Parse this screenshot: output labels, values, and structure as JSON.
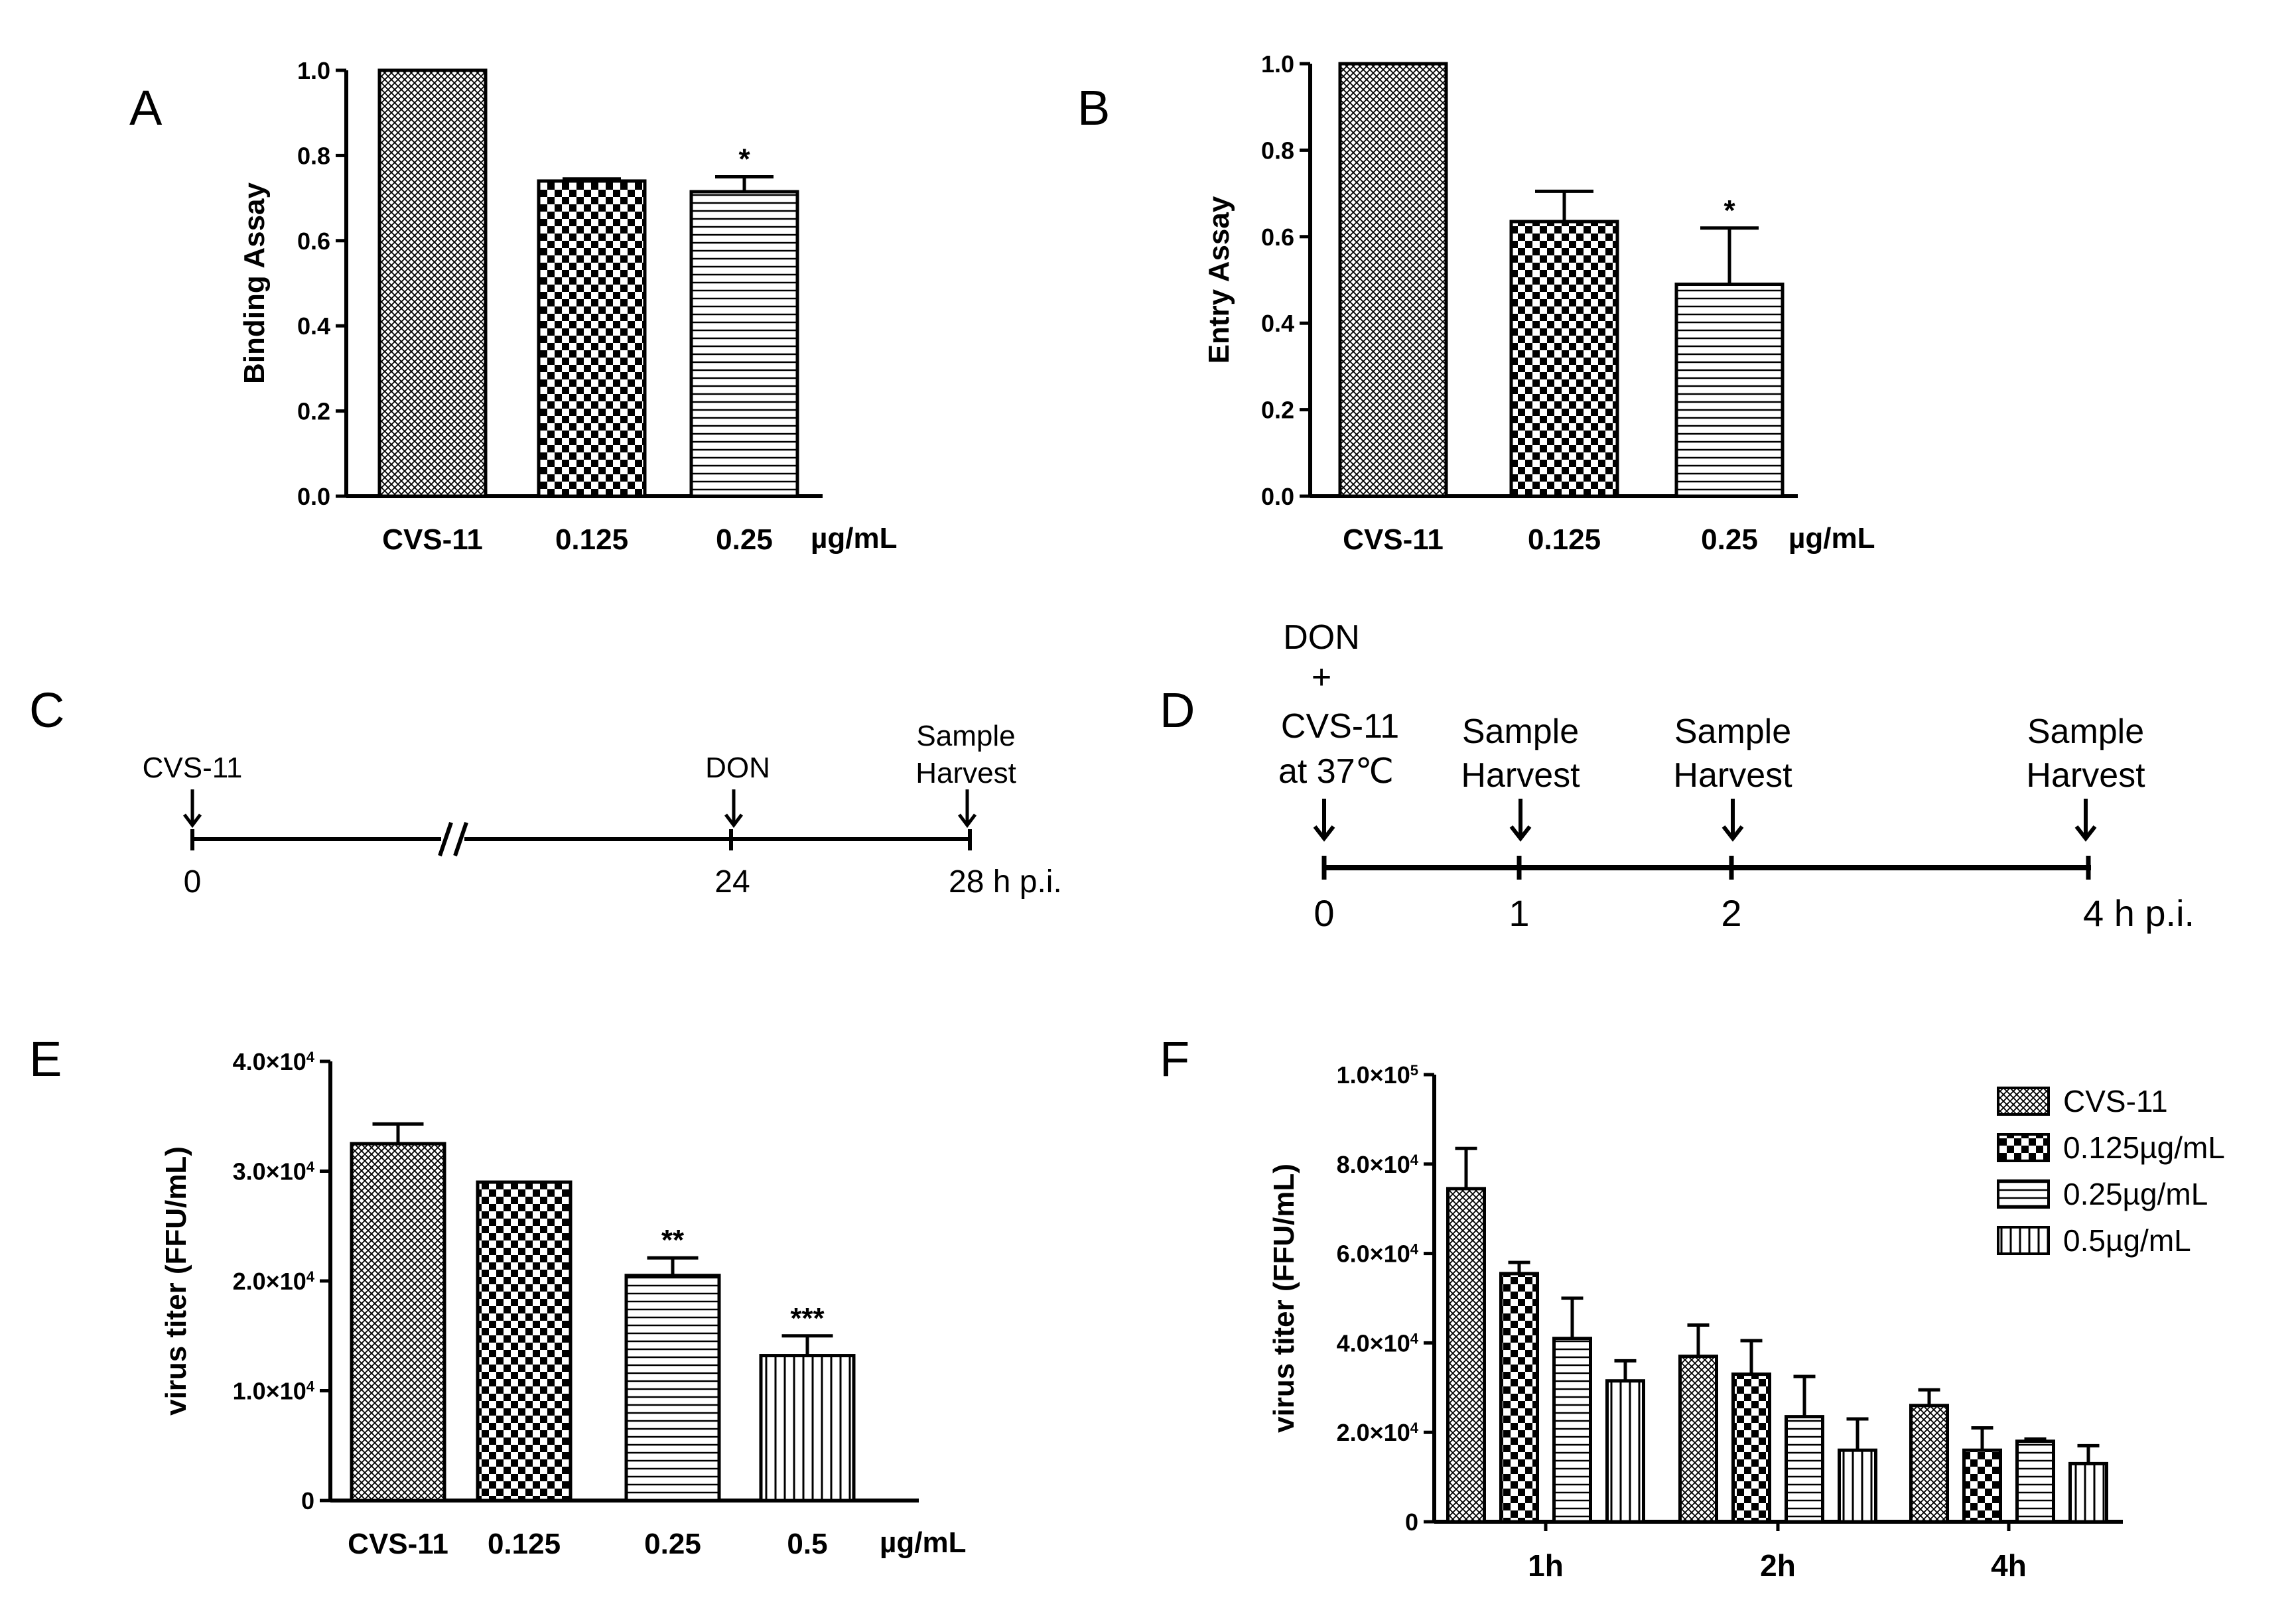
{
  "panels": {
    "A": {
      "label": "A"
    },
    "B": {
      "label": "B"
    },
    "C": {
      "label": "C"
    },
    "D": {
      "label": "D"
    },
    "E": {
      "label": "E"
    },
    "F": {
      "label": "F"
    }
  },
  "chart_data": [
    {
      "id": "A",
      "type": "bar",
      "ylabel": "Binding Assay",
      "categories": [
        "CVS-11",
        "0.125",
        "0.25"
      ],
      "values": [
        1.0,
        0.74,
        0.715
      ],
      "errors": [
        0,
        0.005,
        0.035
      ],
      "patterns": [
        "cross",
        "checker",
        "hlines"
      ],
      "significance": [
        "",
        "",
        "*"
      ],
      "unit_label": "µg/mL",
      "ylim": [
        0,
        1.0
      ],
      "yticks": [
        0.0,
        0.2,
        0.4,
        0.6,
        0.8,
        1.0
      ],
      "ytick_labels": [
        "0.0",
        "0.2",
        "0.4",
        "0.6",
        "0.8",
        "1.0"
      ]
    },
    {
      "id": "B",
      "type": "bar",
      "ylabel": "Entry Assay",
      "categories": [
        "CVS-11",
        "0.125",
        "0.25"
      ],
      "values": [
        1.0,
        0.635,
        0.49
      ],
      "errors": [
        0,
        0.07,
        0.13
      ],
      "patterns": [
        "cross",
        "checker",
        "hlines"
      ],
      "significance": [
        "",
        "",
        "*"
      ],
      "unit_label": "µg/mL",
      "ylim": [
        0,
        1.0
      ],
      "yticks": [
        0.0,
        0.2,
        0.4,
        0.6,
        0.8,
        1.0
      ],
      "ytick_labels": [
        "0.0",
        "0.2",
        "0.4",
        "0.6",
        "0.8",
        "1.0"
      ]
    },
    {
      "id": "E",
      "type": "bar",
      "ylabel": "virus titer (FFU/mL)",
      "categories": [
        "CVS-11",
        "0.125",
        "0.25",
        "0.5"
      ],
      "values": [
        32500,
        29000,
        20500,
        13200
      ],
      "errors": [
        1800,
        0,
        1600,
        1800
      ],
      "patterns": [
        "cross",
        "checker",
        "hlines",
        "vlines"
      ],
      "significance": [
        "",
        "",
        "**",
        "***"
      ],
      "unit_label": "µg/mL",
      "ylim": [
        0,
        40000
      ],
      "yticks": [
        0,
        10000,
        20000,
        30000,
        40000
      ],
      "ytick_labels": [
        {
          "base": "0",
          "exp": ""
        },
        {
          "base": "1.0×10",
          "exp": "4"
        },
        {
          "base": "2.0×10",
          "exp": "4"
        },
        {
          "base": "3.0×10",
          "exp": "4"
        },
        {
          "base": "4.0×10",
          "exp": "4"
        }
      ]
    },
    {
      "id": "F",
      "type": "bar",
      "ylabel": "virus titer (FFU/mL)",
      "categories": [
        "1h",
        "2h",
        "4h"
      ],
      "series": [
        {
          "name": "CVS-11",
          "pattern": "cross",
          "values": [
            74500,
            37000,
            26000
          ],
          "errors": [
            9000,
            7000,
            3500
          ]
        },
        {
          "name": "0.125µg/mL",
          "pattern": "checker",
          "values": [
            55500,
            33000,
            16000
          ],
          "errors": [
            2500,
            7500,
            5000
          ]
        },
        {
          "name": "0.25µg/mL",
          "pattern": "hlines",
          "values": [
            41000,
            23500,
            18000
          ],
          "errors": [
            9000,
            9000,
            500
          ]
        },
        {
          "name": "0.5µg/mL",
          "pattern": "vlines",
          "values": [
            31500,
            16000,
            13000
          ],
          "errors": [
            4500,
            7000,
            4000
          ]
        }
      ],
      "legend_position": "top-right",
      "ylim": [
        0,
        100000
      ],
      "yticks": [
        0,
        20000,
        40000,
        60000,
        80000,
        100000
      ],
      "ytick_labels": [
        {
          "base": "0",
          "exp": ""
        },
        {
          "base": "2.0×10",
          "exp": "4"
        },
        {
          "base": "4.0×10",
          "exp": "4"
        },
        {
          "base": "6.0×10",
          "exp": "4"
        },
        {
          "base": "8.0×10",
          "exp": "4"
        },
        {
          "base": "1.0×10",
          "exp": "5"
        }
      ]
    }
  ],
  "timeline_C": {
    "events": [
      {
        "label": "CVS-11",
        "tick": "0"
      },
      {
        "label": "DON",
        "tick": "24"
      },
      {
        "label_lines": [
          "Sample",
          "Harvest"
        ],
        "tick": "28 h p.i."
      }
    ]
  },
  "timeline_D": {
    "events": [
      {
        "label_lines": [
          "DON",
          "+",
          "CVS-11",
          "at 37℃"
        ],
        "tick": "0"
      },
      {
        "label_lines": [
          "Sample",
          "Harvest"
        ],
        "tick": "1"
      },
      {
        "label_lines": [
          "Sample",
          "Harvest"
        ],
        "tick": "2"
      },
      {
        "label_lines": [
          "Sample",
          "Harvest"
        ],
        "tick": "4 h p.i."
      }
    ]
  }
}
